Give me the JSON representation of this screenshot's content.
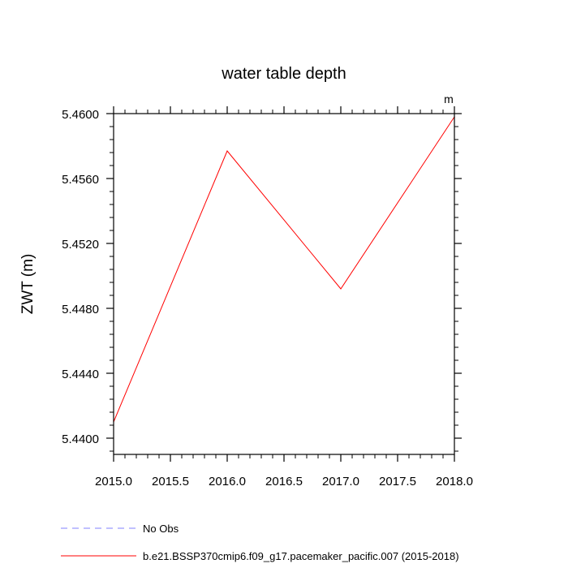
{
  "chart_data": {
    "type": "line",
    "title": "water table depth",
    "units": "m",
    "xlabel": "",
    "ylabel": "ZWT  (m)",
    "xlim": [
      2015.0,
      2018.0
    ],
    "ylim": [
      5.439,
      5.46
    ],
    "x_ticks": [
      "2015.0",
      "2015.5",
      "2016.0",
      "2016.5",
      "2017.0",
      "2017.5",
      "2018.0"
    ],
    "y_ticks": [
      "5.4400",
      "5.4440",
      "5.4480",
      "5.4520",
      "5.4560",
      "5.4600"
    ],
    "x": [
      2015.0,
      2016.0,
      2017.0,
      2018.0
    ],
    "series": [
      {
        "name": "b.e21.BSSP370cmip6.f09_g17.pacemaker_pacific.007 (2015-2018)",
        "values": [
          5.441,
          5.4577,
          5.4492,
          5.4598
        ],
        "color": "#ff0000",
        "style": "solid"
      }
    ],
    "legend": [
      {
        "label": "No Obs",
        "color": "#8080ff",
        "style": "dashed"
      },
      {
        "label": "b.e21.BSSP370cmip6.f09_g17.pacemaker_pacific.007 (2015-2018)",
        "color": "#ff0000",
        "style": "solid"
      }
    ],
    "legend_position": "bottom-left",
    "grid": false
  }
}
